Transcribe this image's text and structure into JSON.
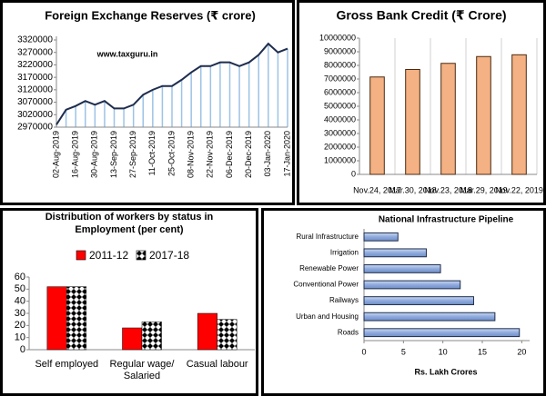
{
  "chart_data": [
    {
      "type": "line",
      "title": "Foreign Exchange Reserves (₹ crore)",
      "annotation": "www.taxguru.in",
      "categories": [
        "02-Aug-2019",
        null,
        "16-Aug-2019",
        null,
        "30-Aug-2019",
        null,
        "13-Sep-2019",
        null,
        "27-Sep-2019",
        null,
        "11-Oct-2019",
        null,
        "25-Oct-2019",
        null,
        "08-Nov-2019",
        null,
        "22-Nov-2019",
        null,
        "06-Dec-2019",
        null,
        "20-Dec-2019",
        null,
        "03-Jan-2020",
        null,
        "17-Jan-2020"
      ],
      "values": [
        2980000,
        3040000,
        3055000,
        3075000,
        3060000,
        3075000,
        3045000,
        3045000,
        3060000,
        3100000,
        3120000,
        3135000,
        3135000,
        3160000,
        3190000,
        3215000,
        3215000,
        3230000,
        3230000,
        3215000,
        3230000,
        3260000,
        3305000,
        3270000,
        3285000
      ],
      "color": "#1f2d4d",
      "drop_color": "#9dc3e6",
      "ylim": [
        2970000,
        3320000
      ],
      "yticks": [
        2970000,
        3020000,
        3070000,
        3120000,
        3170000,
        3220000,
        3270000,
        3320000
      ]
    },
    {
      "type": "bar",
      "title": "Gross Bank Credit (₹ Crore)",
      "categories": [
        "Nov.24, 2017",
        "Mar.30, 2018",
        "Nov.23, 2018",
        "Mar.29, 2019",
        "Nov.22, 2019"
      ],
      "values": [
        7150000,
        7700000,
        8150000,
        8650000,
        8780000
      ],
      "color": "#f4b183",
      "ylim": [
        0,
        10000000
      ],
      "yticks": [
        0,
        1000000,
        2000000,
        3000000,
        4000000,
        5000000,
        6000000,
        7000000,
        8000000,
        9000000,
        10000000
      ],
      "grid": true
    },
    {
      "type": "bar",
      "title": "Distribution of workers by status in Employment (per cent)",
      "categories": [
        "Self employed",
        "Regular wage/ Salaried",
        "Casual labour"
      ],
      "series": [
        {
          "name": "2011-12",
          "color": "#ff0000",
          "values": [
            52,
            18,
            30
          ]
        },
        {
          "name": "2017-18",
          "color": "#ffffff",
          "pattern": "checker",
          "values": [
            52,
            23,
            25
          ]
        }
      ],
      "legend": "top",
      "ylim": [
        0,
        60
      ],
      "yticks": [
        0,
        10,
        20,
        30,
        40,
        50,
        60
      ]
    },
    {
      "type": "barh",
      "title": "National Infrastructure Pipeline",
      "xlabel": "Rs. Lakh Crores",
      "categories": [
        "Rural Infrastructure",
        "Irrigation",
        "Renewable Power",
        "Conventional Power",
        "Railways",
        "Urban and Housing",
        "Roads"
      ],
      "values": [
        4.3,
        7.9,
        9.7,
        12.2,
        13.9,
        16.6,
        19.7
      ],
      "color": "#8faadc",
      "xlim": [
        0,
        21
      ],
      "xticks": [
        0,
        5,
        10,
        15,
        20
      ]
    }
  ]
}
